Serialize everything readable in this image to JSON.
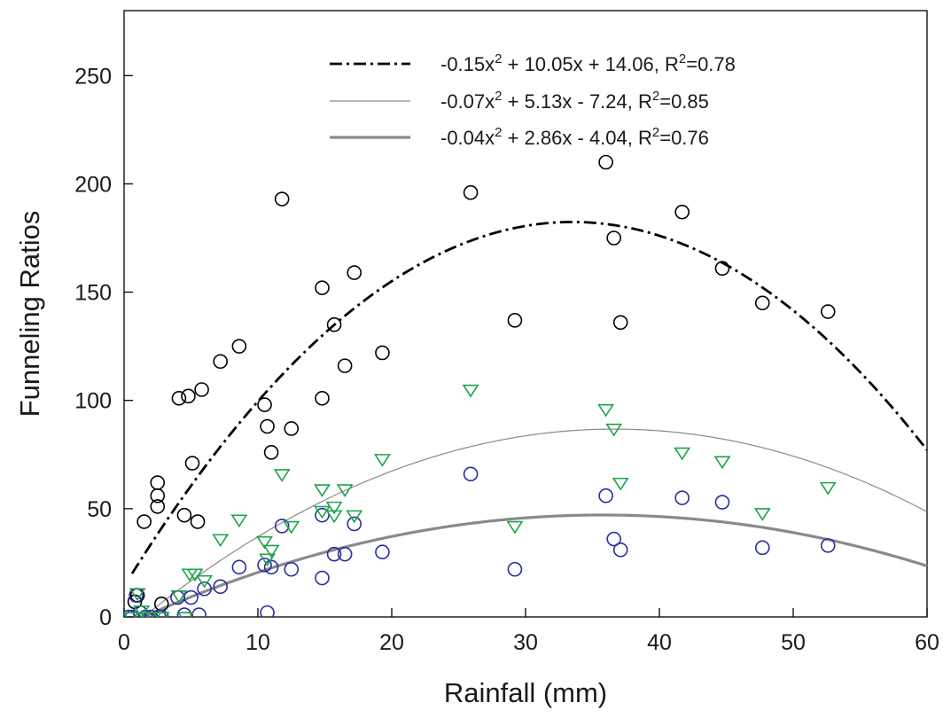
{
  "chart_data": {
    "type": "scatter",
    "xlabel": "Rainfall (mm)",
    "ylabel": "Funneling Ratios",
    "xlim": [
      0,
      60
    ],
    "ylim": [
      0,
      280
    ],
    "xticks": [
      "0",
      "10",
      "20",
      "30",
      "40",
      "50",
      "60"
    ],
    "yticks": [
      "0",
      "50",
      "100",
      "150",
      "200",
      "250"
    ],
    "grid": false,
    "legend_position": "top",
    "series": [
      {
        "marker": "circle",
        "color": "#000000",
        "points": [
          [
            0.8,
            7
          ],
          [
            1.0,
            10
          ],
          [
            1.5,
            44
          ],
          [
            2.5,
            62
          ],
          [
            2.5,
            56
          ],
          [
            2.5,
            51
          ],
          [
            2.8,
            6
          ],
          [
            4.1,
            101
          ],
          [
            4.5,
            47
          ],
          [
            4.8,
            102
          ],
          [
            5.1,
            71
          ],
          [
            5.5,
            44
          ],
          [
            5.8,
            105
          ],
          [
            7.2,
            118
          ],
          [
            8.6,
            125
          ],
          [
            10.5,
            98
          ],
          [
            10.7,
            88
          ],
          [
            11.0,
            76
          ],
          [
            11.8,
            193
          ],
          [
            12.5,
            87
          ],
          [
            14.8,
            101
          ],
          [
            14.8,
            152
          ],
          [
            15.7,
            135
          ],
          [
            16.5,
            116
          ],
          [
            17.2,
            159
          ],
          [
            19.3,
            122
          ],
          [
            25.9,
            196
          ],
          [
            29.2,
            137
          ],
          [
            36.0,
            210
          ],
          [
            36.6,
            175
          ],
          [
            37.1,
            136
          ],
          [
            41.7,
            187
          ],
          [
            44.7,
            161
          ],
          [
            47.7,
            145
          ],
          [
            52.6,
            141
          ]
        ]
      },
      {
        "marker": "circle",
        "color": "#2b2ba0",
        "points": [
          [
            0.3,
            0
          ],
          [
            0.6,
            0
          ],
          [
            0.9,
            10
          ],
          [
            1.2,
            2
          ],
          [
            1.6,
            0
          ],
          [
            2.0,
            0
          ],
          [
            2.6,
            0
          ],
          [
            2.8,
            0
          ],
          [
            4.0,
            9
          ],
          [
            4.5,
            1
          ],
          [
            5.0,
            9
          ],
          [
            5.6,
            1
          ],
          [
            6.0,
            13
          ],
          [
            7.2,
            14
          ],
          [
            8.6,
            23
          ],
          [
            10.5,
            24
          ],
          [
            10.7,
            2
          ],
          [
            11.0,
            23
          ],
          [
            11.8,
            42
          ],
          [
            12.5,
            22
          ],
          [
            14.8,
            18
          ],
          [
            14.8,
            47
          ],
          [
            15.7,
            29
          ],
          [
            16.5,
            29
          ],
          [
            17.2,
            43
          ],
          [
            19.3,
            30
          ],
          [
            25.9,
            66
          ],
          [
            29.2,
            22
          ],
          [
            36.0,
            56
          ],
          [
            36.6,
            36
          ],
          [
            37.1,
            31
          ],
          [
            41.7,
            55
          ],
          [
            44.7,
            53
          ],
          [
            47.7,
            32
          ],
          [
            52.6,
            33
          ]
        ]
      },
      {
        "marker": "triangle-down",
        "color": "#1fa34a",
        "points": [
          [
            0.5,
            0
          ],
          [
            1.0,
            11
          ],
          [
            1.3,
            3
          ],
          [
            1.8,
            0
          ],
          [
            2.2,
            0
          ],
          [
            2.8,
            0
          ],
          [
            4.1,
            10
          ],
          [
            4.6,
            0
          ],
          [
            4.9,
            20
          ],
          [
            5.3,
            20
          ],
          [
            6.0,
            17
          ],
          [
            7.2,
            36
          ],
          [
            8.6,
            45
          ],
          [
            10.5,
            35
          ],
          [
            10.7,
            27
          ],
          [
            11.0,
            31
          ],
          [
            11.8,
            66
          ],
          [
            12.5,
            42
          ],
          [
            14.8,
            59
          ],
          [
            14.8,
            49
          ],
          [
            15.7,
            47
          ],
          [
            15.7,
            51
          ],
          [
            16.5,
            59
          ],
          [
            17.2,
            47
          ],
          [
            19.3,
            73
          ],
          [
            25.9,
            105
          ],
          [
            29.2,
            42
          ],
          [
            36.0,
            96
          ],
          [
            36.6,
            87
          ],
          [
            37.1,
            62
          ],
          [
            41.7,
            76
          ],
          [
            44.7,
            72
          ],
          [
            47.7,
            48
          ],
          [
            52.6,
            60
          ]
        ]
      }
    ],
    "fits": [
      {
        "name": "-0.15x² + 10.05x + 14.06, R²=0.78",
        "style": "dash-dot",
        "color": "#000000",
        "a": -0.15,
        "b": 10.05,
        "c": 14.06,
        "x_range": [
          0.6,
          60
        ]
      },
      {
        "name": "-0.07x² + 5.13x - 7.24, R²=0.85",
        "style": "thin",
        "color": "#8a8a8a",
        "a": -0.07,
        "b": 5.13,
        "c": -7.24,
        "x_range": [
          1.5,
          60
        ]
      },
      {
        "name": "-0.04x² + 2.86x - 4.04, R²=0.76",
        "style": "thick",
        "color": "#8a8a8a",
        "a": -0.04,
        "b": 2.86,
        "c": -4.04,
        "x_range": [
          1.5,
          60
        ]
      }
    ]
  }
}
